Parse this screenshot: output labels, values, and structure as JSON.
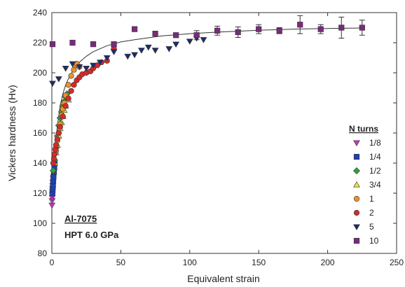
{
  "chart_data": {
    "type": "scatter",
    "title": "",
    "xlabel": "Equivalent strain",
    "ylabel": "Vickers hardness (Hv)",
    "xlim": [
      0,
      250
    ],
    "ylim": [
      80,
      240
    ],
    "x_ticks": [
      0,
      50,
      100,
      150,
      200,
      250
    ],
    "y_ticks": [
      80,
      100,
      120,
      140,
      160,
      180,
      200,
      220,
      240
    ],
    "x_tick_labels": [
      "0",
      "50",
      "100",
      "150",
      "200",
      "250"
    ],
    "y_tick_labels": [
      "80",
      "100",
      "120",
      "140",
      "160",
      "180",
      "200",
      "220",
      "240"
    ],
    "grid": false,
    "legend": {
      "title": "N turns",
      "position": "right"
    },
    "annotations": [
      "Al-7075",
      "HPT 6.0 GPa"
    ],
    "fit_curve": {
      "description": "solid saturation curve",
      "x": [
        0,
        2,
        4,
        6,
        8,
        10,
        12,
        15,
        20,
        25,
        30,
        40,
        50,
        60,
        80,
        100,
        120,
        150,
        180,
        210,
        227
      ],
      "y": [
        113,
        145,
        165,
        178,
        186,
        192,
        196,
        201,
        207,
        211,
        214,
        218,
        220.5,
        222,
        224.5,
        226,
        227,
        228.3,
        229.1,
        229.6,
        229.8
      ]
    },
    "series": [
      {
        "name": "1/8",
        "marker": "triangle-down",
        "color": "#cc33cc",
        "x": [
          0.1,
          0.2,
          0.3,
          0.4,
          0.5,
          0.6,
          0.7,
          0.8,
          1.0
        ],
        "y": [
          112,
          115,
          117,
          119,
          121,
          123,
          125,
          127,
          130
        ]
      },
      {
        "name": "1/4",
        "marker": "square",
        "color": "#1f3fb5",
        "x": [
          0.4,
          0.6,
          0.8,
          1.0,
          1.2,
          1.5,
          1.8,
          2.0
        ],
        "y": [
          120,
          123,
          125,
          128,
          131,
          134,
          137,
          140
        ]
      },
      {
        "name": "1/2",
        "marker": "diamond",
        "color": "#2fa33a",
        "x": [
          1,
          2,
          3,
          4,
          5,
          6,
          7,
          8,
          9,
          10,
          11
        ],
        "y": [
          135,
          142,
          150,
          158,
          165,
          170,
          174,
          178,
          181,
          184,
          186
        ]
      },
      {
        "name": "3/4",
        "marker": "triangle-up",
        "color": "#e8e04a",
        "x": [
          2,
          3,
          4,
          5,
          6,
          7,
          8,
          9,
          10,
          12
        ],
        "y": [
          140,
          147,
          152,
          158,
          163,
          167,
          171,
          175,
          178,
          182
        ]
      },
      {
        "name": "1",
        "marker": "circle",
        "color": "#f0902a",
        "x": [
          3,
          4,
          5,
          6,
          7,
          8,
          9,
          10,
          12,
          14,
          16,
          17,
          18,
          20
        ],
        "y": [
          148,
          155,
          160,
          166,
          172,
          176,
          180,
          185,
          192,
          198,
          202,
          205,
          206,
          204
        ]
      },
      {
        "name": "2",
        "marker": "circle",
        "color": "#d62a2a",
        "x": [
          1,
          1.5,
          2,
          2.5,
          3,
          4,
          5,
          6,
          8,
          10,
          12,
          14,
          16,
          18,
          20,
          22,
          25,
          28,
          30,
          33,
          36,
          40,
          45
        ],
        "y": [
          140,
          143,
          146,
          149,
          152,
          156,
          160,
          164,
          171,
          178,
          183,
          188,
          192,
          195,
          197,
          199,
          200,
          201,
          203,
          205,
          207,
          208,
          216
        ]
      },
      {
        "name": "5",
        "marker": "triangle-down",
        "color": "#1f2b6e",
        "x": [
          0.5,
          5,
          10,
          15,
          20,
          25,
          30,
          35,
          40,
          45,
          55,
          60,
          65,
          70,
          75,
          85,
          90,
          100,
          105,
          110
        ],
        "y": [
          193,
          196,
          203,
          206,
          204,
          203,
          205,
          207,
          210,
          214,
          211,
          212,
          215,
          217,
          215,
          216,
          219,
          221,
          223,
          222
        ]
      },
      {
        "name": "10",
        "marker": "square",
        "color": "#7a2a7e",
        "x": [
          0.5,
          15,
          30,
          45,
          60,
          75,
          90,
          105,
          120,
          135,
          150,
          165,
          180,
          195,
          210,
          225
        ],
        "y": [
          219,
          220,
          219,
          219,
          229,
          226,
          225,
          225,
          228,
          227,
          229,
          228,
          232,
          229,
          230,
          230
        ],
        "error": [
          0,
          0,
          0,
          0,
          0,
          0,
          1.5,
          3,
          3,
          3.5,
          3,
          2,
          6,
          3,
          7,
          5
        ]
      }
    ]
  }
}
